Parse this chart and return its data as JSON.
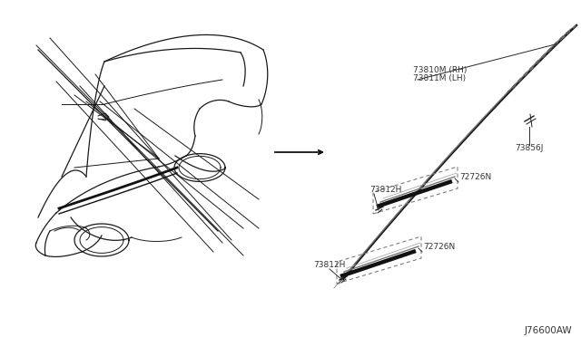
{
  "bg_color": "#ffffff",
  "line_color": "#1a1a1a",
  "text_color": "#333333",
  "part_code": "J76600AW",
  "labels": {
    "rh": "73810M (RH)",
    "lh": "73811M (LH)",
    "clip": "73856J",
    "clip2a": "73812H",
    "clip2b": "73812H",
    "moulding_a": "72726N",
    "moulding_b": "72726N"
  },
  "figsize": [
    6.4,
    3.72
  ],
  "dpi": 100
}
